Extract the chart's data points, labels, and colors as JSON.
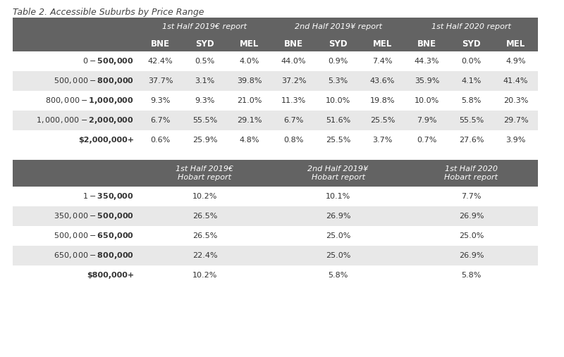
{
  "title": "Table 2. Accessible Suburbs by Price Range",
  "background_color": "#ffffff",
  "header_bg": "#636363",
  "header_text_color": "#ffffff",
  "row_bg_light": "#ffffff",
  "row_bg_dark": "#e8e8e8",
  "table1": {
    "col_groups": [
      {
        "label": "1st Half 2019€ report",
        "sub": [
          "BNE",
          "SYD",
          "MEL"
        ]
      },
      {
        "label": "2nd Half 2019¥ report",
        "sub": [
          "BNE",
          "SYD",
          "MEL"
        ]
      },
      {
        "label": "1st Half 2020 report",
        "sub": [
          "BNE",
          "SYD",
          "MEL"
        ]
      }
    ],
    "rows": [
      {
        "label": "$0-$500,000",
        "vals": [
          "42.4%",
          "0.5%",
          "4.0%",
          "44.0%",
          "0.9%",
          "7.4%",
          "44.3%",
          "0.0%",
          "4.9%"
        ]
      },
      {
        "label": "$500,000-$800,000",
        "vals": [
          "37.7%",
          "3.1%",
          "39.8%",
          "37.2%",
          "5.3%",
          "43.6%",
          "35.9%",
          "4.1%",
          "41.4%"
        ]
      },
      {
        "label": "$800,000-$1,000,000",
        "vals": [
          "9.3%",
          "9.3%",
          "21.0%",
          "11.3%",
          "10.0%",
          "19.8%",
          "10.0%",
          "5.8%",
          "20.3%"
        ]
      },
      {
        "label": "$1,000,000-$2,000,000",
        "vals": [
          "6.7%",
          "55.5%",
          "29.1%",
          "6.7%",
          "51.6%",
          "25.5%",
          "7.9%",
          "55.5%",
          "29.7%"
        ]
      },
      {
        "label": "$2,000,000+",
        "vals": [
          "0.6%",
          "25.9%",
          "4.8%",
          "0.8%",
          "25.5%",
          "3.7%",
          "0.7%",
          "27.6%",
          "3.9%"
        ]
      }
    ]
  },
  "table2": {
    "col_groups": [
      {
        "label": "1st Half 2019€\nHobart report"
      },
      {
        "label": "2nd Half 2019¥\nHobart report"
      },
      {
        "label": "1st Half 2020\nHobart report"
      }
    ],
    "rows": [
      {
        "label": "$1-$350,000",
        "vals": [
          "10.2%",
          "10.1%",
          "7.7%"
        ]
      },
      {
        "label": "$350,000-$500,000",
        "vals": [
          "26.5%",
          "26.9%",
          "26.9%"
        ]
      },
      {
        "label": "$500,000-$650,000",
        "vals": [
          "26.5%",
          "25.0%",
          "25.0%"
        ]
      },
      {
        "label": "$650,000-$800,000",
        "vals": [
          "22.4%",
          "25.0%",
          "26.9%"
        ]
      },
      {
        "label": "$800,000+",
        "vals": [
          "10.2%",
          "5.8%",
          "5.8%"
        ]
      }
    ]
  }
}
